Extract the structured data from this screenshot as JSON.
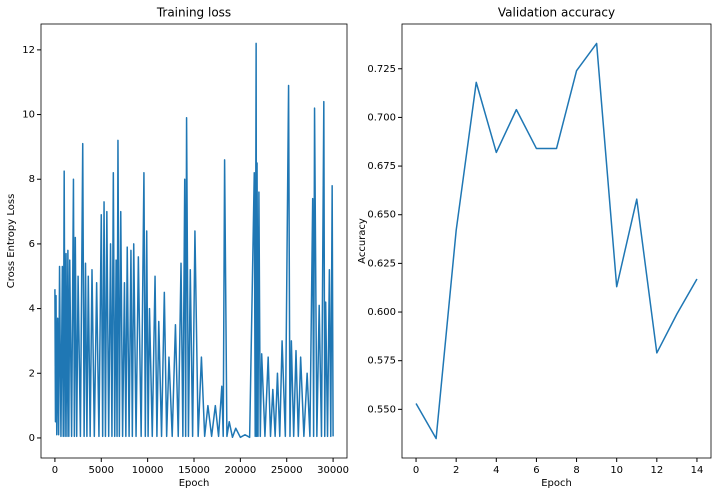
{
  "chart_data": [
    {
      "type": "line",
      "title": "Training loss",
      "x_label": "Epoch",
      "y_label": "Cross Entropy Loss",
      "color": "#1f77b4",
      "x": [
        0,
        60,
        120,
        200,
        300,
        400,
        500,
        650,
        800,
        900,
        1000,
        1100,
        1200,
        1300,
        1400,
        1500,
        1600,
        1800,
        2000,
        2100,
        2200,
        2350,
        2500,
        2750,
        3000,
        3150,
        3300,
        3450,
        3600,
        3800,
        4000,
        4250,
        4500,
        4750,
        5000,
        5150,
        5300,
        5450,
        5600,
        5800,
        6000,
        6150,
        6300,
        6450,
        6600,
        6700,
        6800,
        6950,
        7100,
        7300,
        7500,
        7650,
        7800,
        8000,
        8200,
        8350,
        8500,
        8750,
        9000,
        9300,
        9600,
        9750,
        9900,
        10050,
        10200,
        10500,
        10800,
        11000,
        11200,
        11500,
        11800,
        12050,
        12300,
        12650,
        13000,
        13300,
        13600,
        13800,
        14000,
        14100,
        14200,
        14400,
        14600,
        14850,
        15100,
        15450,
        15800,
        16150,
        16500,
        16900,
        17300,
        17650,
        18000,
        18150,
        18300,
        18550,
        18800,
        19150,
        19500,
        20000,
        20500,
        21000,
        21500,
        21600,
        21700,
        21750,
        21800,
        21900,
        22000,
        22150,
        22300,
        22650,
        23000,
        23250,
        23500,
        23750,
        24000,
        24250,
        24500,
        24850,
        25200,
        25350,
        25500,
        25750,
        26000,
        26250,
        26500,
        26850,
        27200,
        27500,
        27800,
        27900,
        28000,
        28250,
        28500,
        28750,
        29000,
        29100,
        29200,
        29400,
        29600,
        29750,
        29900,
        30000
      ],
      "values": [
        4.6,
        0.5,
        4.4,
        0.1,
        3.7,
        0.1,
        5.3,
        0.05,
        5.3,
        0.05,
        8.25,
        0.05,
        5.7,
        0.05,
        5.8,
        0.05,
        5.5,
        0.05,
        8.0,
        0.05,
        6.2,
        0.05,
        5.0,
        0.05,
        9.1,
        0.05,
        5.4,
        0.05,
        5.0,
        0.05,
        5.2,
        0.05,
        4.8,
        0.05,
        6.9,
        0.05,
        7.3,
        0.05,
        7.0,
        0.05,
        6.0,
        0.05,
        8.2,
        0.05,
        5.5,
        0.05,
        9.2,
        0.05,
        7.0,
        0.05,
        4.8,
        0.05,
        5.9,
        0.05,
        5.8,
        0.05,
        6.0,
        0.05,
        5.6,
        0.05,
        8.2,
        0.05,
        6.4,
        0.05,
        4.0,
        0.05,
        5.0,
        0.05,
        3.6,
        0.05,
        4.5,
        0.05,
        2.5,
        0.05,
        3.5,
        0.05,
        5.4,
        0.05,
        8.0,
        0.05,
        9.9,
        0.05,
        5.2,
        0.05,
        6.4,
        0.05,
        2.5,
        0.05,
        1.0,
        0.05,
        1.0,
        0.05,
        1.6,
        0.05,
        8.6,
        0.05,
        0.5,
        0.02,
        0.3,
        0.02,
        0.1,
        0.02,
        8.2,
        0.05,
        12.2,
        0.05,
        8.5,
        0.05,
        7.6,
        0.05,
        2.6,
        0.05,
        2.5,
        0.05,
        1.5,
        0.05,
        2.0,
        0.05,
        3.0,
        0.05,
        10.9,
        0.05,
        3.0,
        0.05,
        2.7,
        0.05,
        2.5,
        0.05,
        2.0,
        0.05,
        7.4,
        0.05,
        10.2,
        0.05,
        4.1,
        0.05,
        10.4,
        0.05,
        4.2,
        0.05,
        5.2,
        0.05,
        7.8,
        0.05
      ],
      "xlim": [
        -1500,
        31500
      ],
      "xticks": [
        0,
        5000,
        10000,
        15000,
        20000,
        25000,
        30000
      ],
      "ylim": [
        -0.62,
        12.8
      ],
      "yticks": [
        0,
        2,
        4,
        6,
        8,
        10,
        12
      ]
    },
    {
      "type": "line",
      "title": "Validation accuracy",
      "x_label": "Epoch",
      "y_label": "Accuracy",
      "color": "#1f77b4",
      "x": [
        0,
        1,
        2,
        3,
        4,
        5,
        6,
        7,
        8,
        9,
        10,
        11,
        12,
        13,
        14
      ],
      "values": [
        0.553,
        0.535,
        0.642,
        0.718,
        0.682,
        0.704,
        0.684,
        0.684,
        0.724,
        0.738,
        0.613,
        0.658,
        0.579,
        0.599,
        0.617
      ],
      "xlim": [
        -0.7,
        14.7
      ],
      "xticks": [
        0,
        2,
        4,
        6,
        8,
        10,
        12,
        14
      ],
      "ylim": [
        0.525,
        0.748
      ],
      "yticks": [
        {
          "value": 0.55,
          "label": "0.550"
        },
        0.575,
        {
          "value": 0.6,
          "label": "0.600"
        },
        0.625,
        {
          "value": 0.65,
          "label": "0.650"
        },
        0.675,
        {
          "value": 0.7,
          "label": "0.700"
        },
        0.725
      ]
    }
  ]
}
